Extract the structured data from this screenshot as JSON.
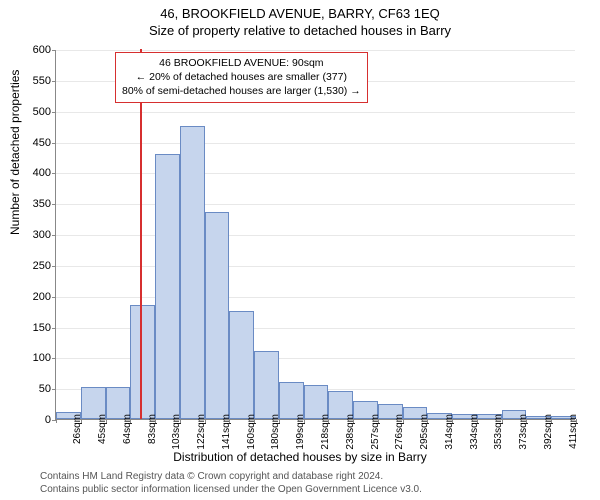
{
  "title_main": "46, BROOKFIELD AVENUE, BARRY, CF63 1EQ",
  "title_sub": "Size of property relative to detached houses in Barry",
  "y_axis_label": "Number of detached properties",
  "x_axis_label": "Distribution of detached houses by size in Barry",
  "footer_line1": "Contains HM Land Registry data © Crown copyright and database right 2024.",
  "footer_line2": "Contains public sector information licensed under the Open Government Licence v3.0.",
  "annotation": {
    "line1": "46 BROOKFIELD AVENUE: 90sqm",
    "line2": "← 20% of detached houses are smaller (377)",
    "line3": "80% of semi-detached houses are larger (1,530) →"
  },
  "chart": {
    "type": "histogram",
    "ylim": [
      0,
      600
    ],
    "ytick_step": 50,
    "background_color": "#ffffff",
    "grid_color": "#e8e8e8",
    "axis_color": "#888888",
    "bar_fill": "#c6d5ed",
    "bar_border": "#6a8bc4",
    "marker_color": "#d62f2f",
    "marker_sqm": 90,
    "x_categories": [
      "26sqm",
      "45sqm",
      "64sqm",
      "83sqm",
      "103sqm",
      "122sqm",
      "141sqm",
      "160sqm",
      "180sqm",
      "199sqm",
      "218sqm",
      "238sqm",
      "257sqm",
      "276sqm",
      "295sqm",
      "314sqm",
      "334sqm",
      "353sqm",
      "373sqm",
      "392sqm",
      "411sqm"
    ],
    "values": [
      12,
      52,
      52,
      185,
      430,
      475,
      335,
      175,
      110,
      60,
      55,
      45,
      30,
      25,
      20,
      10,
      8,
      8,
      15,
      5,
      5
    ],
    "label_fontsize": 12,
    "tick_fontsize": 11
  }
}
